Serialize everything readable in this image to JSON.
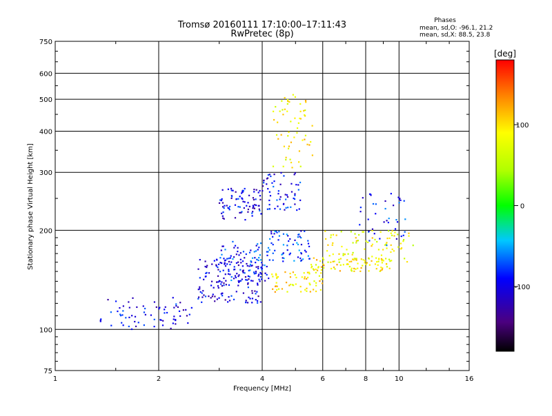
{
  "chart_data": {
    "type": "scatter",
    "title": "Tromsø 20160111 17:10:00–17:11:43",
    "subtitle": "RwPretec (8p)",
    "xlabel": "Frequency [MHz]",
    "ylabel": "Stationary phase Virtual Height [km]",
    "x_scale": "log",
    "y_scale": "log",
    "xlim": [
      1,
      16
    ],
    "ylim": [
      75,
      750
    ],
    "x_ticks": [
      1,
      2,
      4,
      6,
      8,
      10,
      16
    ],
    "y_ticks": [
      75,
      100,
      200,
      300,
      400,
      500,
      600,
      750
    ],
    "grid": true,
    "phase_stats": {
      "title": "Phases",
      "line_o": "mean, sd,O: -96.1, 21.2",
      "line_x": "mean, sd,X: 88.5, 23.8"
    },
    "colorbar": {
      "label": "[deg]",
      "range": [
        -180,
        180
      ],
      "ticks": [
        100,
        0,
        -100
      ],
      "colormap": "rainbow"
    },
    "clusters": [
      {
        "x_range": [
          1.35,
          2.5
        ],
        "y_range": [
          100,
          125
        ],
        "phase": -100,
        "count": 70
      },
      {
        "x_range": [
          2.6,
          4.0
        ],
        "y_range": [
          120,
          165
        ],
        "phase": -105,
        "count": 150
      },
      {
        "x_range": [
          3.0,
          4.3
        ],
        "y_range": [
          140,
          185
        ],
        "phase": -85,
        "count": 90
      },
      {
        "x_range": [
          3.0,
          4.0
        ],
        "y_range": [
          215,
          270
        ],
        "phase": -100,
        "count": 80
      },
      {
        "x_range": [
          4.0,
          5.2
        ],
        "y_range": [
          230,
          300
        ],
        "phase": -95,
        "count": 60
      },
      {
        "x_range": [
          4.3,
          5.6
        ],
        "y_range": [
          310,
          520
        ],
        "phase": 90,
        "count": 60
      },
      {
        "x_range": [
          4.2,
          6.0
        ],
        "y_range": [
          130,
          150
        ],
        "phase": 100,
        "count": 60
      },
      {
        "x_range": [
          5.5,
          9.5
        ],
        "y_range": [
          150,
          165
        ],
        "phase": 95,
        "count": 80
      },
      {
        "x_range": [
          6.0,
          11.0
        ],
        "y_range": [
          160,
          200
        ],
        "phase": 80,
        "count": 90
      },
      {
        "x_range": [
          4.2,
          5.5
        ],
        "y_range": [
          160,
          200
        ],
        "phase": -80,
        "count": 60
      },
      {
        "x_range": [
          7.5,
          10.5
        ],
        "y_range": [
          180,
          260
        ],
        "phase": -90,
        "count": 40
      }
    ]
  }
}
